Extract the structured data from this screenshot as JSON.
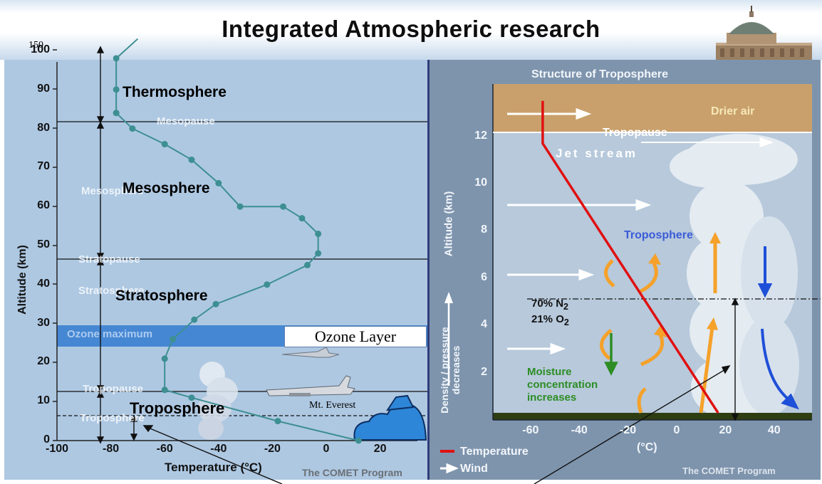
{
  "slide": {
    "title": "Integrated Atmospheric research",
    "label_150": "150"
  },
  "left_chart": {
    "ylabel": "Altitude (km)",
    "xlabel": "Temperature (°C)",
    "credit": "The COMET Program",
    "yticks": [
      "0",
      "10",
      "20",
      "30",
      "40",
      "50",
      "60",
      "70",
      "80",
      "90",
      "100"
    ],
    "xticks": [
      "-100",
      "-80",
      "-60",
      "-40",
      "-20",
      "0",
      "20"
    ],
    "ozone_maximum": "Ozone maximum",
    "faint_labels": {
      "mesopause": "Mesopause",
      "mesosphere": "Mesosphere",
      "stratopause": "Stratopause",
      "stratosphere": "Stratosphere",
      "tropopause": "Tropopause",
      "troposphere": "Troposphere"
    },
    "layers": {
      "thermosphere": "Thermosphere",
      "mesosphere": "Mesosphere",
      "stratosphere": "Stratosphere",
      "troposphere": "Troposphere"
    },
    "ozone_layer_box": "Ozone  Layer",
    "mt_everest": "Mt. Everest",
    "profile": {
      "x_temp_c": [
        -70,
        -78,
        -78,
        -78,
        -72,
        -60,
        -50,
        -40,
        -32,
        -16,
        -9,
        -3,
        -3,
        -7,
        -22,
        -41,
        -49,
        -57,
        -60,
        -60,
        -50,
        -18,
        12
      ],
      "y_km": [
        103,
        98,
        90,
        84,
        80,
        76,
        72,
        66,
        60,
        60,
        57,
        53,
        48,
        45,
        40,
        35,
        31,
        26,
        21,
        13,
        11,
        5,
        0
      ]
    }
  },
  "right_chart": {
    "title": "Structure of Troposphere",
    "ylabel": "Altitude (km)",
    "xlabel": "(°C)",
    "credit": "The COMET Program",
    "yticks": [
      "2",
      "4",
      "6",
      "8",
      "10",
      "12"
    ],
    "xticks": [
      "-60",
      "-40",
      "-20",
      "0",
      "20",
      "40"
    ],
    "drier_air": "Drier air",
    "tropopause": "Tropopause",
    "jet_stream": "Jet stream",
    "troposphere": "Troposphere",
    "n2": "70% N",
    "o2": "21% O",
    "sub_2": "2",
    "moisture": [
      "Moisture",
      "concentration",
      "increases"
    ],
    "density": [
      "Density / pressure",
      "decreases"
    ],
    "legend": {
      "temperature": "Temperature",
      "wind": "Wind"
    },
    "temperature_profile": {
      "x_temp_c": [
        -55,
        -55,
        17
      ],
      "y_km": [
        13.5,
        11.7,
        0.3
      ]
    }
  },
  "colors": {
    "left_bg": "#aec8e2",
    "right_bg": "#7e94ad",
    "ozone": "#3a7fd2",
    "temperature": "#e01010",
    "profile": "#3d8f92",
    "moisture_text": "#2d8d24",
    "troposphere_text": "#3b5bd8",
    "drier_air_bg": "#c9a06b"
  }
}
